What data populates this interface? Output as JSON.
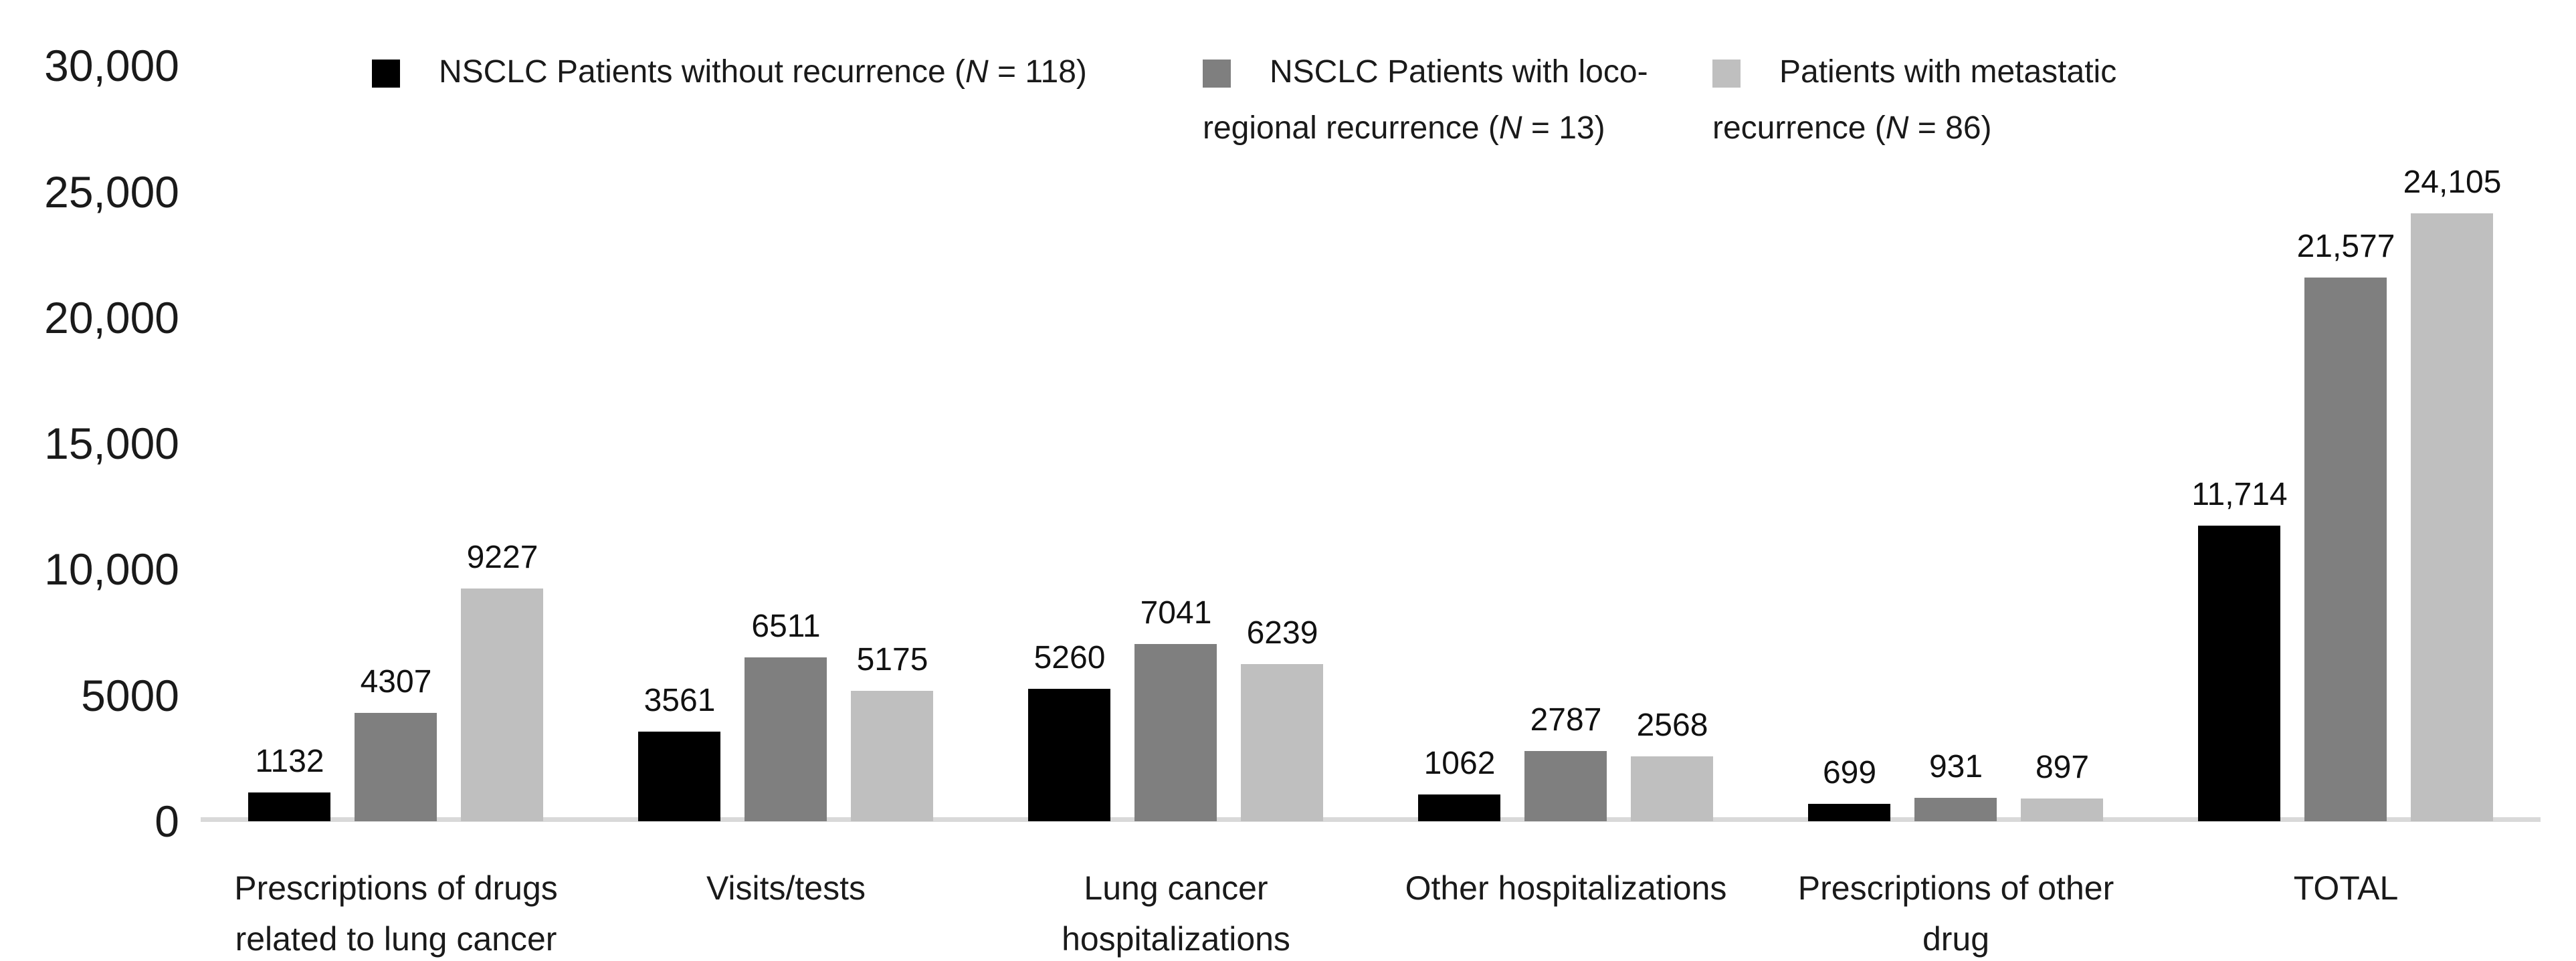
{
  "chart_data": {
    "type": "bar",
    "title": "",
    "xlabel": "",
    "ylabel": "",
    "grid": false,
    "legend_position": "top",
    "categories": [
      "Prescriptions of drugs related to lung cancer",
      "Visits/tests",
      "Lung cancer hospitalizations",
      "Other hospitalizations",
      "Prescriptions of other drug",
      "TOTAL"
    ],
    "series": [
      {
        "name": "NSCLC Patients without recurrence (N = 118)",
        "color": "#000000",
        "values": [
          1132,
          3561,
          5260,
          1062,
          699,
          11714
        ],
        "labels": [
          "1132",
          "3561",
          "5260",
          "1062",
          "699",
          "11,714"
        ]
      },
      {
        "name": "NSCLC Patients with loco-regional recurrence (N = 13)",
        "color": "#7f7f7f",
        "values": [
          4307,
          6511,
          7041,
          2787,
          931,
          21577
        ],
        "labels": [
          "4307",
          "6511",
          "7041",
          "2787",
          "931",
          "21,577"
        ]
      },
      {
        "name": "Patients with metastatic recurrence (N = 86)",
        "color": "#bfbfbf",
        "values": [
          9227,
          5175,
          6239,
          2568,
          897,
          24105
        ],
        "labels": [
          "9227",
          "5175",
          "6239",
          "2568",
          "897",
          "24,105"
        ]
      }
    ],
    "y_axis": {
      "min": 0,
      "max": 30000,
      "step": 5000,
      "tick_labels": [
        "0",
        "5000",
        "10,000",
        "15,000",
        "20,000",
        "25,000",
        "30,000"
      ]
    }
  },
  "legend": {
    "items": [
      {
        "before": "NSCLC Patients without recurrence (",
        "n": "N",
        "after": " = 118)",
        "color": "#000000"
      },
      {
        "before": "NSCLC Patients with loco-regional recurrence (",
        "n": "N",
        "after": " = 13)",
        "color": "#7f7f7f"
      },
      {
        "before": "Patients with metastatic recurrence (",
        "n": "N",
        "after": " = 86)",
        "color": "#bfbfbf"
      }
    ]
  },
  "colors": {
    "background": "#ffffff",
    "axis_line": "#d9d9d9",
    "text": "#1a1a1a"
  }
}
